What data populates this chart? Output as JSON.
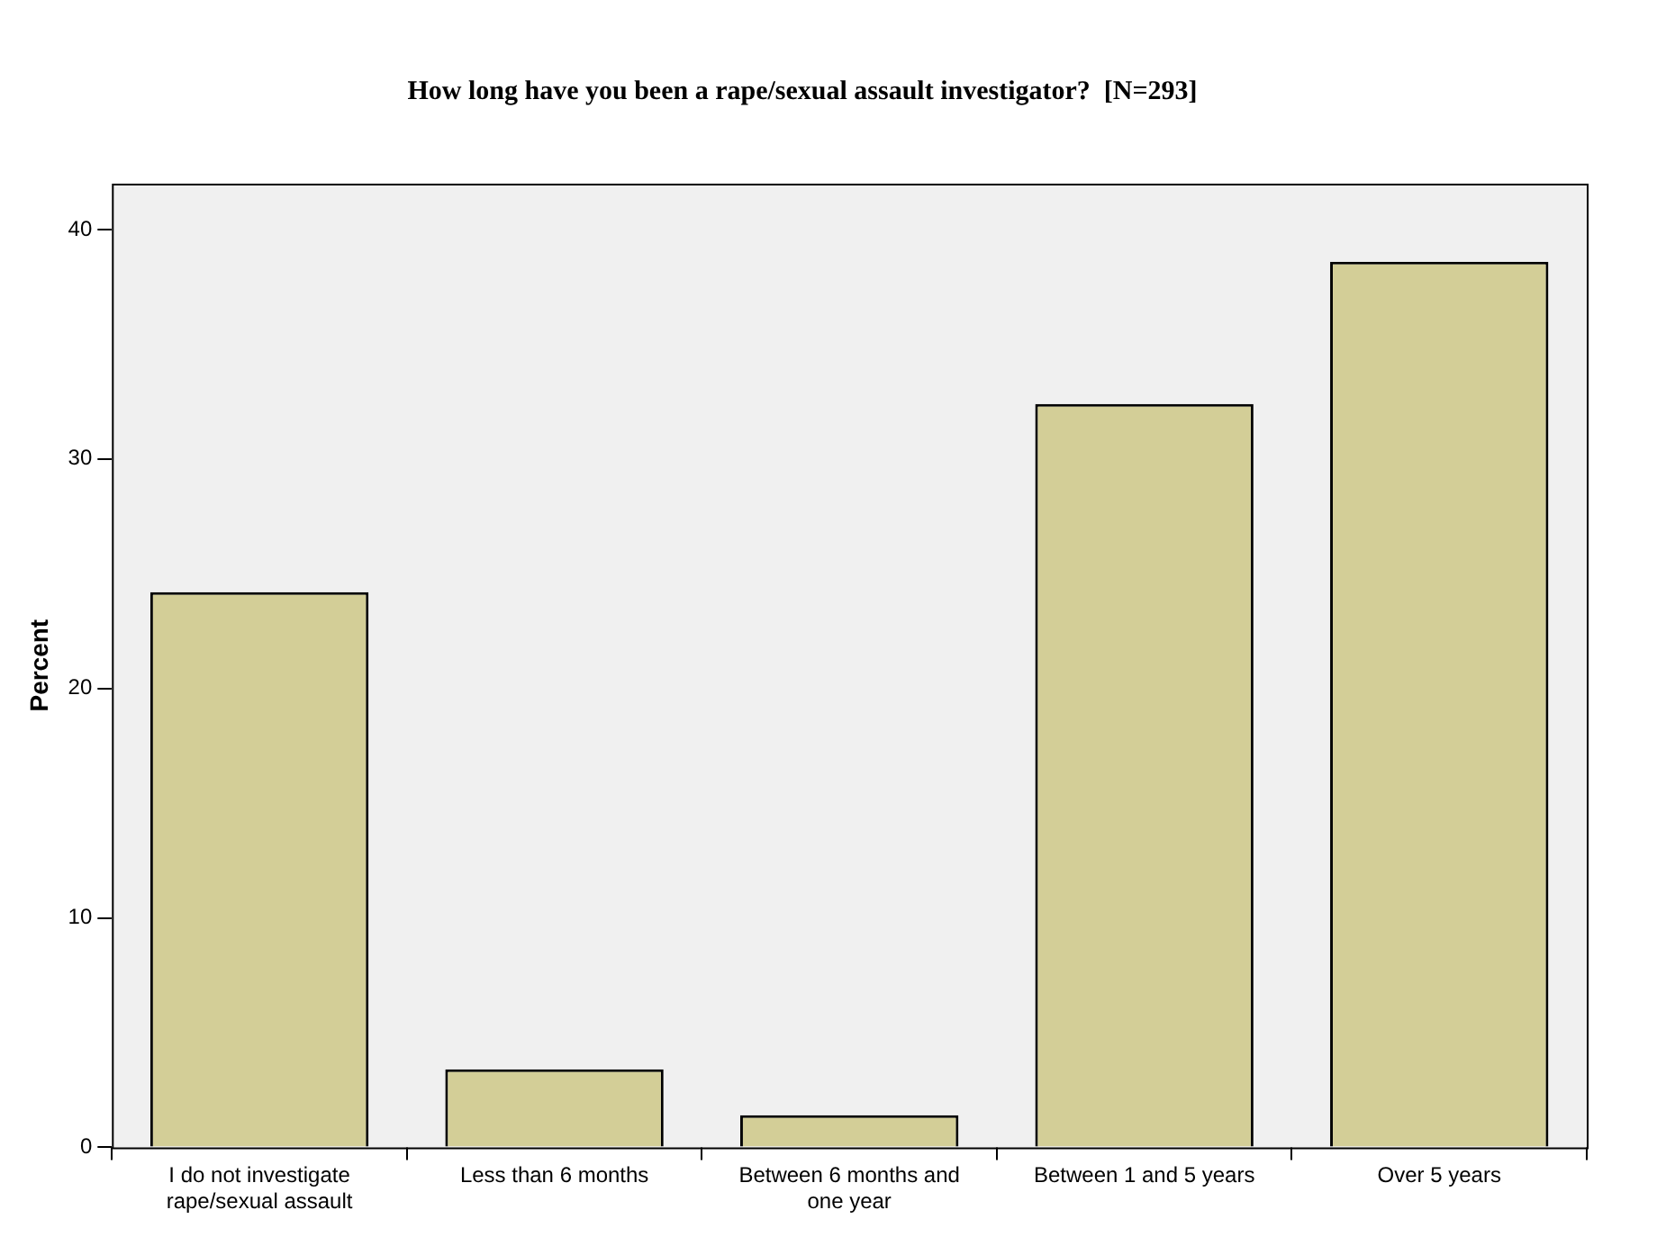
{
  "chart_data": {
    "type": "bar",
    "title": "How long have you been a rape/sexual assault investigator?  [N=293]",
    "ylabel": "Percent",
    "categories": [
      "I do not investigate rape/sexual assault",
      "Less than 6 months",
      "Between 6 months and one year",
      "Between 1 and 5 years",
      "Over 5 years"
    ],
    "values": [
      24.2,
      3.4,
      1.4,
      32.4,
      38.6
    ],
    "color": "#d3ce97",
    "ylim": [
      0,
      42
    ],
    "yticks": [
      0,
      10,
      20,
      30,
      40
    ],
    "grid": false,
    "legend": false
  }
}
